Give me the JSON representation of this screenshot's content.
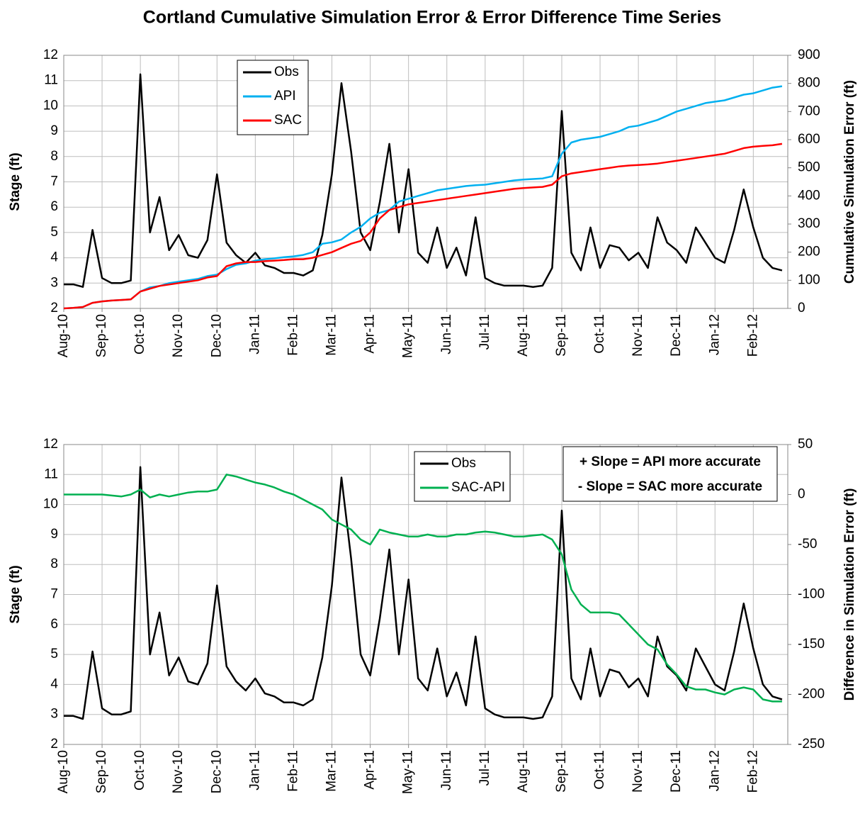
{
  "chart_data": [
    {
      "type": "line",
      "title": "Cortland Cumulative Simulation Error & Error Difference Time Series",
      "ylabel": "Stage (ft)",
      "y2label": "Cumulative Simulation Error (ft)",
      "y2_color": "#7030a0",
      "categories": [
        "Aug-10",
        null,
        null,
        null,
        "Sep-10",
        null,
        null,
        null,
        "Oct-10",
        null,
        null,
        null,
        "Nov-10",
        null,
        null,
        null,
        "Dec-10",
        null,
        null,
        null,
        "Jan-11",
        null,
        null,
        null,
        "Feb-11",
        null,
        null,
        null,
        "Mar-11",
        null,
        null,
        null,
        "Apr-11",
        null,
        null,
        null,
        "May-11",
        null,
        null,
        null,
        "Jun-11",
        null,
        null,
        null,
        "Jul-11",
        null,
        null,
        null,
        "Aug-11",
        null,
        null,
        null,
        "Sep-11",
        null,
        null,
        null,
        "Oct-11",
        null,
        null,
        null,
        "Nov-11",
        null,
        null,
        null,
        "Dec-11",
        null,
        null,
        null,
        "Jan-12",
        null,
        null,
        null,
        "Feb-12",
        null,
        null,
        null
      ],
      "ylim": [
        2,
        12
      ],
      "yticks": [
        2,
        3,
        4,
        5,
        6,
        7,
        8,
        9,
        10,
        11,
        12
      ],
      "y2lim": [
        0,
        900
      ],
      "y2ticks": [
        0,
        100,
        200,
        300,
        400,
        500,
        600,
        700,
        800,
        900
      ],
      "grid": true,
      "series": [
        {
          "name": "Obs",
          "color": "#000000",
          "values": [
            2.95,
            2.95,
            2.85,
            5.1,
            3.2,
            3.0,
            3.0,
            3.1,
            11.25,
            5.0,
            6.4,
            4.3,
            4.9,
            4.1,
            4.0,
            4.7,
            7.3,
            4.6,
            4.1,
            3.8,
            4.2,
            3.7,
            3.6,
            3.4,
            3.4,
            3.3,
            3.5,
            4.9,
            7.3,
            10.9,
            8.2,
            5.0,
            4.3,
            6.2,
            8.5,
            5.0,
            7.5,
            4.2,
            3.8,
            5.2,
            3.6,
            4.4,
            3.3,
            5.6,
            3.2,
            3.0,
            2.9,
            2.9,
            2.9,
            2.85,
            2.9,
            3.6,
            9.8,
            4.2,
            3.5,
            5.2,
            3.6,
            4.5,
            4.4,
            3.9,
            4.2,
            3.6,
            5.6,
            4.6,
            4.3,
            3.8,
            5.2,
            4.6,
            4.0,
            3.8,
            5.1,
            6.7,
            5.2,
            4.0,
            3.6,
            3.5
          ]
        },
        {
          "name": "API",
          "color": "#00b0f0",
          "axis": "y2",
          "values": [
            0,
            2,
            5,
            20,
            25,
            28,
            30,
            32,
            60,
            75,
            80,
            90,
            95,
            100,
            105,
            115,
            120,
            140,
            155,
            160,
            170,
            175,
            178,
            182,
            185,
            190,
            200,
            230,
            235,
            245,
            270,
            290,
            320,
            340,
            350,
            380,
            390,
            400,
            410,
            420,
            425,
            430,
            435,
            438,
            440,
            445,
            450,
            455,
            458,
            460,
            462,
            470,
            550,
            590,
            600,
            605,
            610,
            620,
            630,
            645,
            650,
            660,
            670,
            685,
            700,
            710,
            720,
            730,
            735,
            740,
            750,
            760,
            765,
            775,
            785,
            790
          ]
        },
        {
          "name": "SAC",
          "color": "#ff0000",
          "axis": "y2",
          "values": [
            0,
            2,
            5,
            20,
            25,
            28,
            30,
            32,
            60,
            70,
            80,
            85,
            90,
            95,
            100,
            110,
            115,
            150,
            160,
            165,
            165,
            168,
            170,
            172,
            175,
            175,
            180,
            190,
            200,
            215,
            230,
            240,
            270,
            320,
            350,
            360,
            370,
            375,
            380,
            385,
            390,
            395,
            400,
            405,
            410,
            415,
            420,
            425,
            428,
            430,
            432,
            440,
            470,
            480,
            485,
            490,
            495,
            500,
            505,
            508,
            510,
            512,
            515,
            520,
            525,
            530,
            535,
            540,
            545,
            550,
            560,
            570,
            575,
            578,
            580,
            585
          ]
        }
      ]
    },
    {
      "type": "line",
      "ylabel": "Stage (ft)",
      "y2label": "Difference in Simulation Error (ft)",
      "y2_color": "#00b050",
      "categories": [
        "Aug-10",
        null,
        null,
        null,
        "Sep-10",
        null,
        null,
        null,
        "Oct-10",
        null,
        null,
        null,
        "Nov-10",
        null,
        null,
        null,
        "Dec-10",
        null,
        null,
        null,
        "Jan-11",
        null,
        null,
        null,
        "Feb-11",
        null,
        null,
        null,
        "Mar-11",
        null,
        null,
        null,
        "Apr-11",
        null,
        null,
        null,
        "May-11",
        null,
        null,
        null,
        "Jun-11",
        null,
        null,
        null,
        "Jul-11",
        null,
        null,
        null,
        "Aug-11",
        null,
        null,
        null,
        "Sep-11",
        null,
        null,
        null,
        "Oct-11",
        null,
        null,
        null,
        "Nov-11",
        null,
        null,
        null,
        "Dec-11",
        null,
        null,
        null,
        "Jan-12",
        null,
        null,
        null,
        "Feb-12",
        null,
        null,
        null
      ],
      "ylim": [
        2,
        12
      ],
      "yticks": [
        2,
        3,
        4,
        5,
        6,
        7,
        8,
        9,
        10,
        11,
        12
      ],
      "y2lim": [
        -250,
        50
      ],
      "y2ticks": [
        -250,
        -200,
        -150,
        -100,
        -50,
        0,
        50
      ],
      "grid": true,
      "annotations": [
        "+ Slope = API more accurate",
        "- Slope = SAC more accurate"
      ],
      "series": [
        {
          "name": "Obs",
          "color": "#000000",
          "values": [
            2.95,
            2.95,
            2.85,
            5.1,
            3.2,
            3.0,
            3.0,
            3.1,
            11.25,
            5.0,
            6.4,
            4.3,
            4.9,
            4.1,
            4.0,
            4.7,
            7.3,
            4.6,
            4.1,
            3.8,
            4.2,
            3.7,
            3.6,
            3.4,
            3.4,
            3.3,
            3.5,
            4.9,
            7.3,
            10.9,
            8.2,
            5.0,
            4.3,
            6.2,
            8.5,
            5.0,
            7.5,
            4.2,
            3.8,
            5.2,
            3.6,
            4.4,
            3.3,
            5.6,
            3.2,
            3.0,
            2.9,
            2.9,
            2.9,
            2.85,
            2.9,
            3.6,
            9.8,
            4.2,
            3.5,
            5.2,
            3.6,
            4.5,
            4.4,
            3.9,
            4.2,
            3.6,
            5.6,
            4.6,
            4.3,
            3.8,
            5.2,
            4.6,
            4.0,
            3.8,
            5.1,
            6.7,
            5.2,
            4.0,
            3.6,
            3.5
          ]
        },
        {
          "name": "SAC-API",
          "color": "#00b050",
          "axis": "y2",
          "values": [
            0,
            0,
            0,
            0,
            0,
            -1,
            -2,
            0,
            5,
            -3,
            0,
            -2,
            0,
            2,
            3,
            3,
            5,
            20,
            18,
            15,
            12,
            10,
            7,
            3,
            0,
            -5,
            -10,
            -15,
            -25,
            -30,
            -35,
            -45,
            -50,
            -35,
            -38,
            -40,
            -42,
            -42,
            -40,
            -42,
            -42,
            -40,
            -40,
            -38,
            -37,
            -38,
            -40,
            -42,
            -42,
            -41,
            -40,
            -45,
            -60,
            -95,
            -110,
            -118,
            -118,
            -118,
            -120,
            -130,
            -140,
            -150,
            -155,
            -170,
            -180,
            -192,
            -195,
            -195,
            -198,
            -200,
            -195,
            -193,
            -195,
            -205,
            -207,
            -207
          ]
        }
      ]
    }
  ]
}
